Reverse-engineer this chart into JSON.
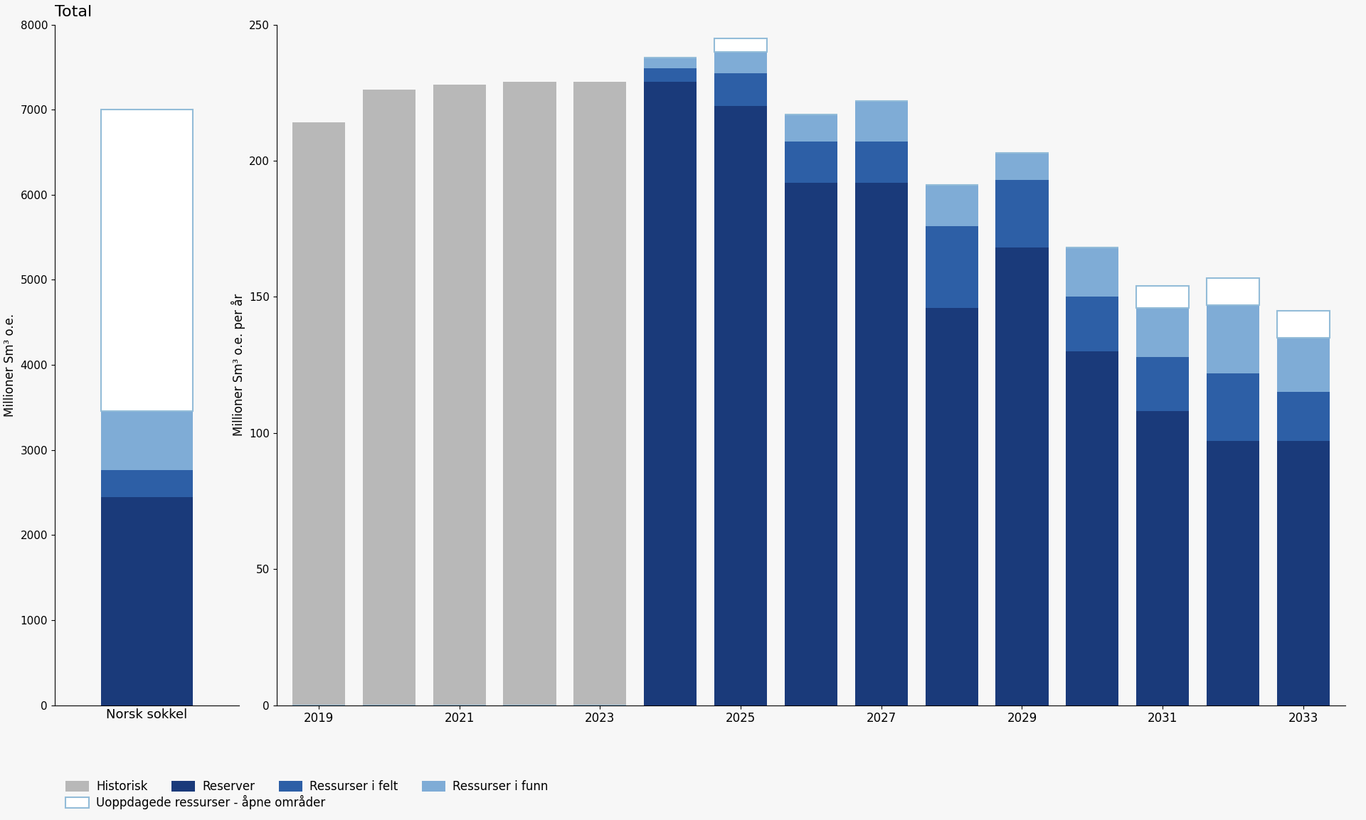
{
  "left_bar": {
    "label": "Norsk sokkel",
    "title": "Total",
    "reserver": 2450,
    "ressurser_felt": 310,
    "ressurser_funn": 700,
    "uoppdagede": 3540,
    "ylim": [
      0,
      8000
    ],
    "yticks": [
      0,
      1000,
      2000,
      3000,
      4000,
      5000,
      6000,
      7000,
      8000
    ],
    "ylabel": "Millioner Sm³ o.e."
  },
  "right_chart": {
    "ylabel": "Millioner Sm³ o.e. per år",
    "ylim": [
      0,
      250
    ],
    "yticks": [
      0,
      50,
      100,
      150,
      200,
      250
    ],
    "years": [
      2019,
      2020,
      2021,
      2022,
      2023,
      2024,
      2025,
      2026,
      2027,
      2028,
      2029,
      2030,
      2031,
      2032,
      2033
    ],
    "historisk": [
      214,
      226,
      228,
      229,
      229,
      0,
      0,
      0,
      0,
      0,
      0,
      0,
      0,
      0,
      0
    ],
    "reserver": [
      0,
      0,
      0,
      0,
      0,
      229,
      220,
      192,
      192,
      146,
      168,
      130,
      108,
      97,
      97
    ],
    "ressurser_felt": [
      0,
      0,
      0,
      0,
      0,
      5,
      12,
      15,
      15,
      30,
      25,
      20,
      20,
      25,
      18
    ],
    "ressurser_funn": [
      0,
      0,
      0,
      0,
      0,
      4,
      8,
      10,
      15,
      15,
      10,
      18,
      18,
      25,
      20
    ],
    "uoppdagede": [
      0,
      0,
      0,
      0,
      0,
      0,
      5,
      0,
      0,
      0,
      0,
      0,
      8,
      10,
      10
    ]
  },
  "colors": {
    "historisk": "#b8b8b8",
    "reserver": "#1a3a7a",
    "ressurser_felt": "#2d5fa6",
    "ressurser_funn": "#7facd6",
    "uoppdagede_fill": "#ffffff",
    "uoppdagede_edge": "#93bcd8"
  },
  "legend": [
    {
      "label": "Historisk",
      "color": "#b8b8b8",
      "type": "fill"
    },
    {
      "label": "Reserver",
      "color": "#1a3a7a",
      "type": "fill"
    },
    {
      "label": "Ressurser i felt",
      "color": "#2d5fa6",
      "type": "fill"
    },
    {
      "label": "Ressurser i funn",
      "color": "#7facd6",
      "type": "fill"
    },
    {
      "label": "Uoppdagede ressurser - åpne områder",
      "color": "#ffffff",
      "edge": "#93bcd8",
      "type": "edge"
    }
  ],
  "background_color": "#f7f7f7"
}
